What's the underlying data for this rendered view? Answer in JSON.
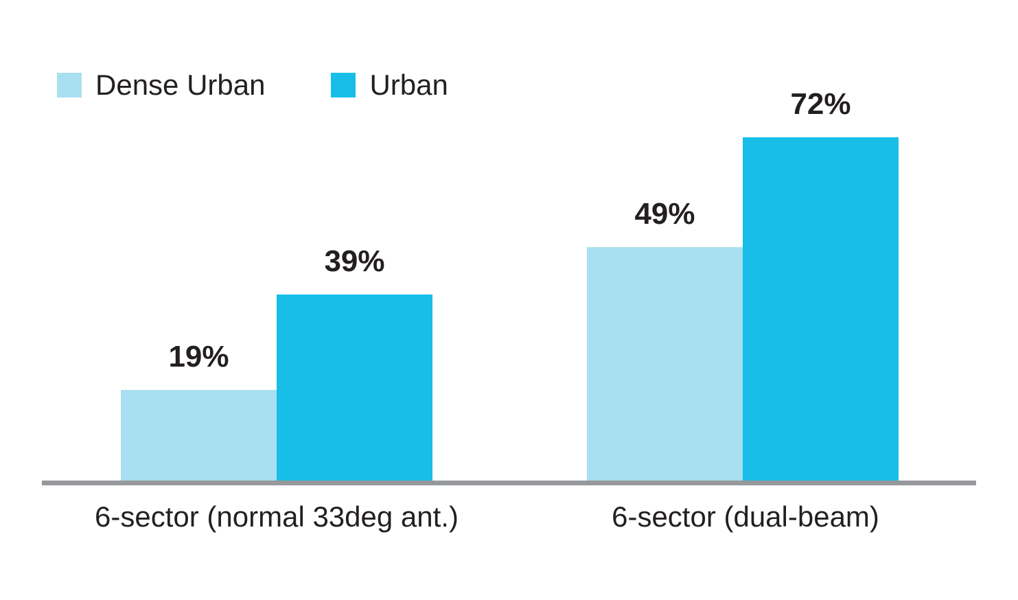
{
  "figure": {
    "background": "#FFFFFF",
    "axis_line_color": "#97989B",
    "text_color": "#231F20"
  },
  "chart_data": {
    "type": "bar",
    "title": "",
    "categories": [
      "6-sector (normal 33deg ant.)",
      "6-sector (dual-beam)"
    ],
    "series": [
      {
        "name": "Dense Urban",
        "color": "#A8DFF1",
        "values": [
          19,
          49
        ],
        "labels": [
          "19%",
          "49%"
        ]
      },
      {
        "name": "Urban",
        "color": "#18BEE8",
        "values": [
          39,
          72
        ],
        "labels": [
          "39%",
          "72%"
        ]
      }
    ],
    "unit": "%",
    "ylim": [
      0,
      100
    ],
    "grid": false,
    "legend_position": "top-left",
    "x_axis_line": true,
    "value_labels_shown": true
  }
}
